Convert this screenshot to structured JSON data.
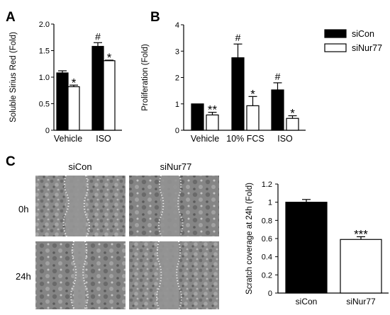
{
  "panel_labels": [
    "A",
    "B",
    "C"
  ],
  "legend": [
    {
      "name": "siCon",
      "color": "#000000"
    },
    {
      "name": "siNur77",
      "color": "#ffffff"
    }
  ],
  "chart_data": [
    {
      "id": "A",
      "type": "bar",
      "ylabel": "Soluble Sirius Red (Fold)",
      "ylim": [
        0,
        2.0
      ],
      "yticks": [
        "0",
        "0.5",
        "1.0",
        "1.5",
        "2.0"
      ],
      "categories": [
        "Vehicle",
        "ISO"
      ],
      "series": [
        {
          "name": "siCon",
          "values": [
            1.08,
            1.58
          ],
          "errors": [
            0.04,
            0.07
          ],
          "annotations": [
            "",
            "#"
          ]
        },
        {
          "name": "siNur77",
          "values": [
            0.82,
            1.31
          ],
          "errors": [
            0.03,
            0.01
          ],
          "annotations": [
            "*",
            "*"
          ]
        }
      ]
    },
    {
      "id": "B",
      "type": "bar",
      "ylabel": "Proliferation (Fold)",
      "ylim": [
        0,
        4
      ],
      "yticks": [
        "0",
        "1",
        "2",
        "3",
        "4"
      ],
      "categories": [
        "Vehicle",
        "10% FCS",
        "ISO"
      ],
      "series": [
        {
          "name": "siCon",
          "values": [
            1.0,
            2.75,
            1.53
          ],
          "errors": [
            0.0,
            0.52,
            0.27
          ],
          "annotations": [
            "",
            "#",
            "#"
          ]
        },
        {
          "name": "siNur77",
          "values": [
            0.58,
            0.93,
            0.45
          ],
          "errors": [
            0.1,
            0.35,
            0.1
          ],
          "annotations": [
            "**",
            "*",
            "*"
          ]
        }
      ]
    },
    {
      "id": "C",
      "type": "bar",
      "ylabel": "Scratch coverage at 24h (Fold)",
      "ylim": [
        0,
        1.2
      ],
      "yticks": [
        "0",
        "0.2",
        "0.4",
        "0.6",
        "0.8",
        "1",
        "1.2"
      ],
      "categories": [
        "siCon",
        "siNur77"
      ],
      "values": [
        1.0,
        0.59
      ],
      "errors": [
        0.03,
        0.03
      ],
      "annotations": [
        "",
        "***"
      ],
      "colors": [
        "#000000",
        "#ffffff"
      ]
    }
  ],
  "micrographs": {
    "column_labels": [
      "siCon",
      "siNur77"
    ],
    "row_labels": [
      "0h",
      "24h"
    ]
  }
}
